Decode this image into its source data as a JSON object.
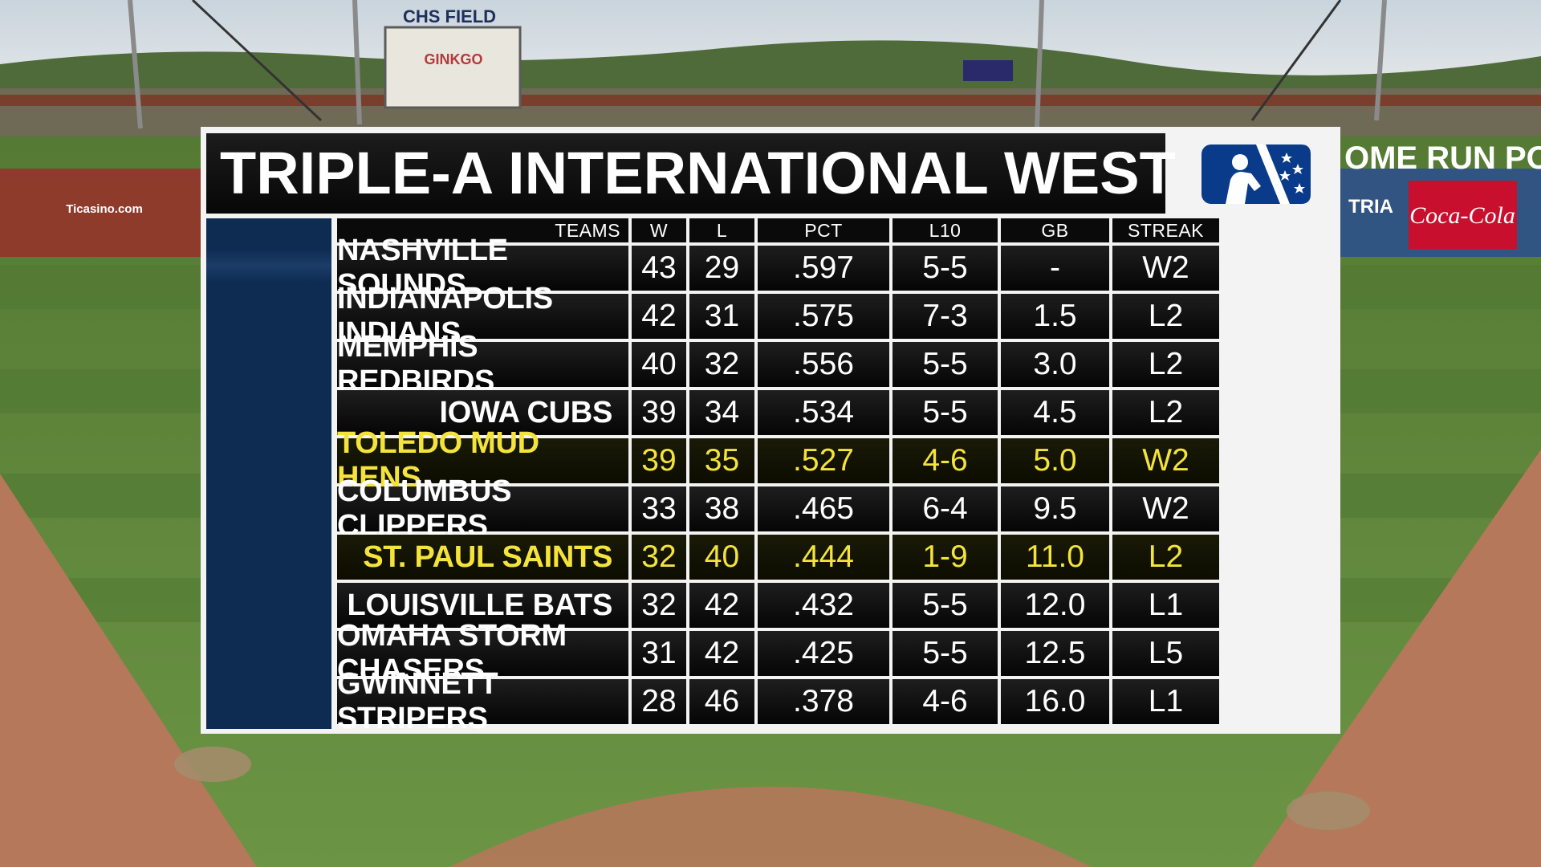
{
  "board": {
    "title": "TRIPLE-A INTERNATIONAL WEST",
    "logo": "mlb-logo",
    "colors": {
      "navy": "#0e2b52",
      "highlight_text": "#f3e33a",
      "text": "#ffffff"
    }
  },
  "background": {
    "scoreboard_text": "CHS FIELD",
    "sign_text": "GINKGO",
    "ad_text": "Ticasino.com",
    "home_run_sign": "OME RUN PO",
    "tria_sign": "TRIA",
    "coke_sign": "Coca-Cola"
  },
  "table": {
    "headers": [
      "TEAMS",
      "W",
      "L",
      "PCT",
      "L10",
      "GB",
      "STREAK"
    ],
    "rows": [
      {
        "team": "NASHVILLE SOUNDS",
        "w": "43",
        "l": "29",
        "pct": ".597",
        "l10": "5-5",
        "gb": "-",
        "streak": "W2",
        "highlight": false
      },
      {
        "team": "INDIANAPOLIS INDIANS",
        "w": "42",
        "l": "31",
        "pct": ".575",
        "l10": "7-3",
        "gb": "1.5",
        "streak": "L2",
        "highlight": false
      },
      {
        "team": "MEMPHIS REDBIRDS",
        "w": "40",
        "l": "32",
        "pct": ".556",
        "l10": "5-5",
        "gb": "3.0",
        "streak": "L2",
        "highlight": false
      },
      {
        "team": "IOWA CUBS",
        "w": "39",
        "l": "34",
        "pct": ".534",
        "l10": "5-5",
        "gb": "4.5",
        "streak": "L2",
        "highlight": false
      },
      {
        "team": "TOLEDO MUD HENS",
        "w": "39",
        "l": "35",
        "pct": ".527",
        "l10": "4-6",
        "gb": "5.0",
        "streak": "W2",
        "highlight": true
      },
      {
        "team": "COLUMBUS CLIPPERS",
        "w": "33",
        "l": "38",
        "pct": ".465",
        "l10": "6-4",
        "gb": "9.5",
        "streak": "W2",
        "highlight": false
      },
      {
        "team": "ST. PAUL SAINTS",
        "w": "32",
        "l": "40",
        "pct": ".444",
        "l10": "1-9",
        "gb": "11.0",
        "streak": "L2",
        "highlight": true
      },
      {
        "team": "LOUISVILLE BATS",
        "w": "32",
        "l": "42",
        "pct": ".432",
        "l10": "5-5",
        "gb": "12.0",
        "streak": "L1",
        "highlight": false
      },
      {
        "team": "OMAHA STORM CHASERS",
        "w": "31",
        "l": "42",
        "pct": ".425",
        "l10": "5-5",
        "gb": "12.5",
        "streak": "L5",
        "highlight": false
      },
      {
        "team": "GWINNETT STRIPERS",
        "w": "28",
        "l": "46",
        "pct": ".378",
        "l10": "4-6",
        "gb": "16.0",
        "streak": "L1",
        "highlight": false
      }
    ]
  }
}
